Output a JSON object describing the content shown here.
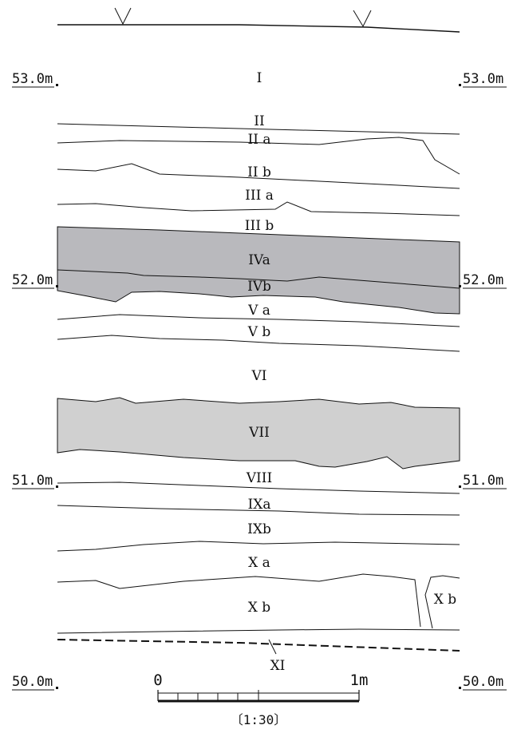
{
  "elevations": {
    "e53": "53.0m",
    "e52": "52.0m",
    "e51": "51.0m",
    "e50": "50.0m"
  },
  "layers": {
    "l1": "I",
    "l2": "II",
    "l2a": "II a",
    "l2b": "II b",
    "l3a": "III a",
    "l3b": "III b",
    "l4a": "IVa",
    "l4b": "IVb",
    "l5a": "V a",
    "l5b": "V b",
    "l6": "VI",
    "l7": "VII",
    "l8": "VIII",
    "l9a": "IXa",
    "l9b": "IXb",
    "l10a": "X a",
    "l10b": "X b",
    "l10b_right": "X b",
    "l11": "XI"
  },
  "scale_bar": {
    "start": "0",
    "end": "1m",
    "ratio": "〔1:30〕"
  },
  "colors": {
    "layer_iv_fill": "#b9b9bd",
    "layer_vii_fill": "#d0d0d0",
    "line": "#111111"
  }
}
